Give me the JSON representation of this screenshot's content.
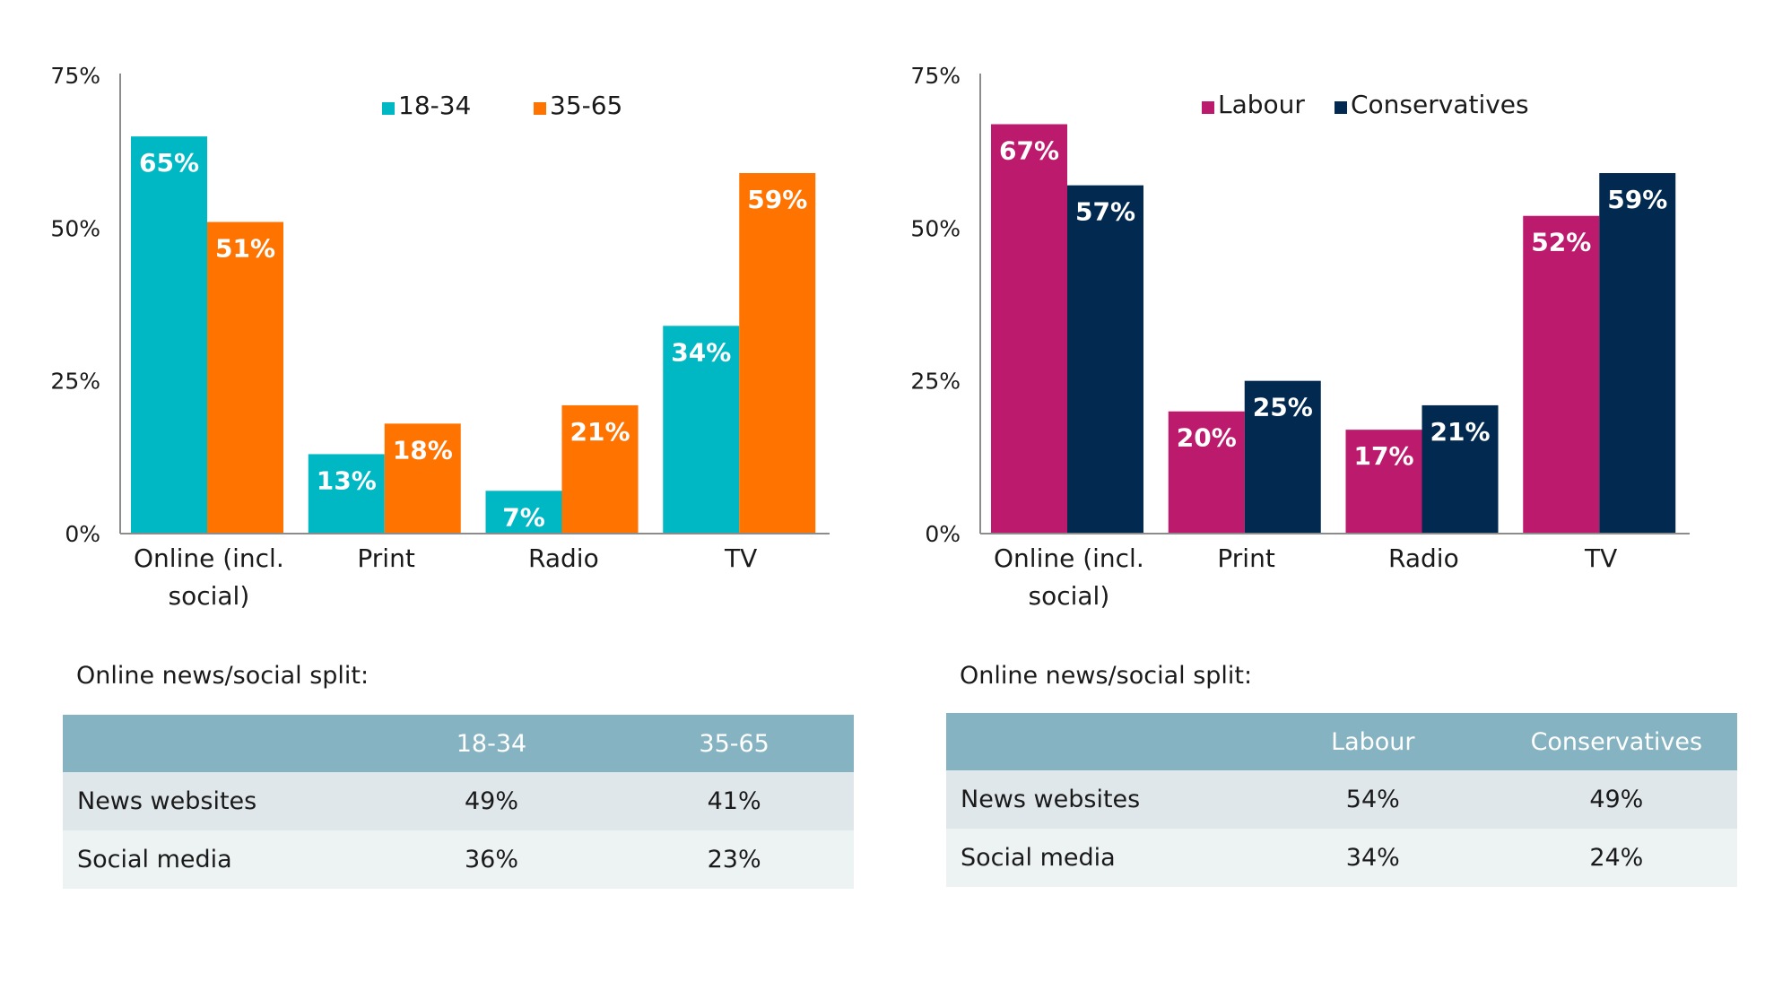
{
  "chart_data": [
    {
      "type": "bar",
      "categories": [
        "Online (incl. social)",
        "Print",
        "Radio",
        "TV"
      ],
      "category_lines": [
        [
          "Online (incl.",
          "social)"
        ],
        [
          "Print"
        ],
        [
          "Radio"
        ],
        [
          "TV"
        ]
      ],
      "series": [
        {
          "name": "18-34",
          "color": "#00b8c4",
          "values": [
            65,
            13,
            7,
            34
          ],
          "labels": [
            "65%",
            "13%",
            "7%",
            "34%"
          ]
        },
        {
          "name": "35-65",
          "color": "#ff7300",
          "values": [
            51,
            18,
            21,
            59
          ],
          "labels": [
            "51%",
            "18%",
            "21%",
            "59%"
          ]
        }
      ],
      "yticks": [
        "0%",
        "25%",
        "50%",
        "75%"
      ],
      "ylim": [
        0,
        75
      ],
      "legend_position": "top-center",
      "grid": false
    },
    {
      "type": "bar",
      "categories": [
        "Online (incl. social)",
        "Print",
        "Radio",
        "TV"
      ],
      "category_lines": [
        [
          "Online (incl.",
          "social)"
        ],
        [
          "Print"
        ],
        [
          "Radio"
        ],
        [
          "TV"
        ]
      ],
      "series": [
        {
          "name": "Labour",
          "color": "#bc1a6c",
          "values": [
            67,
            20,
            17,
            52
          ],
          "labels": [
            "67%",
            "20%",
            "17%",
            "52%"
          ]
        },
        {
          "name": "Conservatives",
          "color": "#02294f",
          "values": [
            57,
            25,
            21,
            59
          ],
          "labels": [
            "57%",
            "25%",
            "21%",
            "59%"
          ]
        }
      ],
      "yticks": [
        "0%",
        "25%",
        "50%",
        "75%"
      ],
      "ylim": [
        0,
        75
      ],
      "legend_position": "top-center",
      "grid": false
    }
  ],
  "tables": [
    {
      "title": "Online news/social split:",
      "headers": [
        "",
        "18-34",
        "35-65"
      ],
      "rows": [
        [
          "News websites",
          "49%",
          "41%"
        ],
        [
          "Social media",
          "36%",
          "23%"
        ]
      ]
    },
    {
      "title": "Online news/social split:",
      "headers": [
        "",
        "Labour",
        "Conservatives"
      ],
      "rows": [
        [
          "News websites",
          "54%",
          "49%"
        ],
        [
          "Social media",
          "34%",
          "24%"
        ]
      ]
    }
  ],
  "colors": {
    "table_header": "#86b3c1",
    "table_row_1": "#dfe7eb",
    "table_row_2": "#edf2f3"
  }
}
